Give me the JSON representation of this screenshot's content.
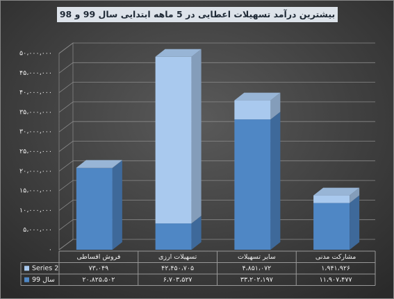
{
  "chart_data": {
    "type": "stacked-bar-3d",
    "title": "بیشترین درآمد تسهیلات اعطایی در 5 ماهه ابتدایی سال 99  و 98",
    "categories": [
      "فروش اقساطی",
      "تسهیلات ارزی",
      "سایر تسهیلات",
      "مشارکت مدنی"
    ],
    "series": [
      {
        "name": "Series 2",
        "color": "#a9c9ee",
        "values": [
          73049,
          42450705,
          4851072,
          1941926
        ],
        "value_labels": [
          "۷۳،۰۴۹",
          "۴۲،۴۵۰،۷۰۵",
          "۴،۸۵۱،۰۷۲",
          "۱،۹۴۱،۹۲۶"
        ]
      },
      {
        "name": "سال 99",
        "color": "#4f87c5",
        "values": [
          20825502,
          6703527,
          33202197,
          11907477
        ],
        "value_labels": [
          "۲۰،۸۲۵،۵۰۲",
          "۶،۷۰۳،۵۲۷",
          "۳۳،۲۰۲،۱۹۷",
          "۱۱،۹۰۷،۴۷۷"
        ]
      }
    ],
    "ylim": [
      0,
      50000000
    ],
    "yticks": [
      {
        "value": 0,
        "label": "۰"
      },
      {
        "value": 5000000,
        "label": "۵،۰۰۰،۰۰۰"
      },
      {
        "value": 10000000,
        "label": "۱۰،۰۰۰،۰۰۰"
      },
      {
        "value": 15000000,
        "label": "۱۵،۰۰۰،۰۰۰"
      },
      {
        "value": 20000000,
        "label": "۲۰،۰۰۰،۰۰۰"
      },
      {
        "value": 25000000,
        "label": "۲۵،۰۰۰،۰۰۰"
      },
      {
        "value": 30000000,
        "label": "۳۰،۰۰۰،۰۰۰"
      },
      {
        "value": 35000000,
        "label": "۳۵،۰۰۰،۰۰۰"
      },
      {
        "value": 40000000,
        "label": "۴۰،۰۰۰،۰۰۰"
      },
      {
        "value": 45000000,
        "label": "۴۵،۰۰۰،۰۰۰"
      },
      {
        "value": 50000000,
        "label": "۵۰،۰۰۰،۰۰۰"
      }
    ],
    "grid": true
  }
}
